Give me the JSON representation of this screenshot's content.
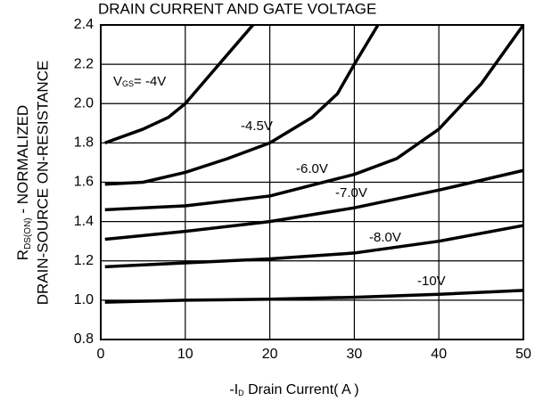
{
  "chart_data": {
    "type": "line",
    "title": "DRAIN CURRENT AND GATE VOLTAGE",
    "x_label": [
      "-I",
      "D",
      " Drain Current( A )"
    ],
    "y_label": [
      [
        "R",
        "DS(ON)",
        " - NORMALIZED"
      ],
      "DRAIN-SOURCE ON-RESISTANCE"
    ],
    "xlim": [
      0,
      50
    ],
    "ylim": [
      0.8,
      2.4
    ],
    "xticks": [
      0,
      10,
      20,
      30,
      40,
      50
    ],
    "yticks": [
      0.8,
      {
        "value": 1.0,
        "label": "1.0"
      },
      1.2,
      1.4,
      1.6,
      1.8,
      {
        "value": 2.0,
        "label": "2.0"
      },
      2.2,
      2.4
    ],
    "grid": true,
    "color": "#000000",
    "series": [
      {
        "name": [
          "V",
          "GS",
          "= -4V"
        ],
        "x": [
          0.5,
          5,
          8,
          10,
          13,
          16,
          18
        ],
        "values": [
          1.8,
          1.87,
          1.93,
          2.0,
          2.15,
          2.3,
          2.4
        ]
      },
      {
        "name": "-4.5V",
        "x": [
          0.5,
          5,
          10,
          15,
          20,
          25,
          28,
          30,
          32.8
        ],
        "values": [
          1.59,
          1.6,
          1.65,
          1.72,
          1.8,
          1.93,
          2.05,
          2.2,
          2.4
        ]
      },
      {
        "name": "-6.0V",
        "x": [
          0.5,
          10,
          20,
          30,
          35,
          40,
          45,
          50
        ],
        "values": [
          1.46,
          1.48,
          1.53,
          1.64,
          1.72,
          1.87,
          2.1,
          2.4
        ]
      },
      {
        "name": "-7.0V",
        "x": [
          0.5,
          10,
          20,
          30,
          40,
          50
        ],
        "values": [
          1.31,
          1.35,
          1.4,
          1.47,
          1.56,
          1.66
        ]
      },
      {
        "name": "-8.0V",
        "x": [
          0.5,
          10,
          20,
          30,
          40,
          50
        ],
        "values": [
          1.17,
          1.19,
          1.21,
          1.24,
          1.3,
          1.38
        ]
      },
      {
        "name": "-10V",
        "x": [
          0.5,
          10,
          20,
          30,
          40,
          50
        ],
        "values": [
          0.99,
          1.0,
          1.005,
          1.015,
          1.03,
          1.05
        ]
      }
    ]
  }
}
